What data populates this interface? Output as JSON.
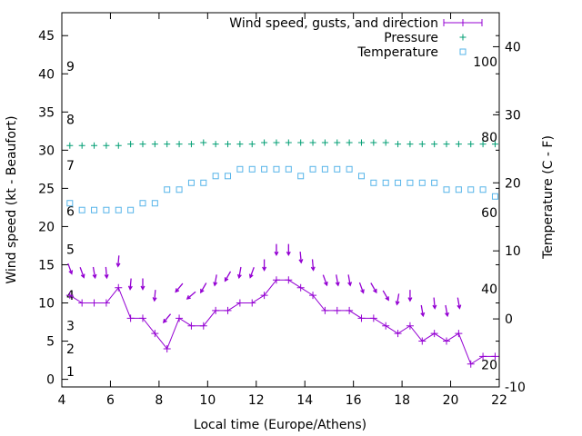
{
  "chart_data": {
    "type": "line",
    "title": "",
    "xlabel": "Local time (Europe/Athens)",
    "ylabel": "Wind speed (kt - Beaufort)",
    "y2label": "Temperature (C - F)",
    "xlim": [
      4,
      22
    ],
    "ylim": [
      -1,
      48
    ],
    "y2lim": [
      -10,
      45
    ],
    "x_ticks": [
      4,
      6,
      8,
      10,
      12,
      14,
      16,
      18,
      20,
      22
    ],
    "y_ticks": [
      0,
      5,
      10,
      15,
      20,
      25,
      30,
      35,
      40,
      45
    ],
    "y2_ticks": [
      -10,
      0,
      10,
      20,
      30,
      40
    ],
    "beaufort_labels": [
      {
        "label": "1",
        "kt": 1
      },
      {
        "label": "2",
        "kt": 4
      },
      {
        "label": "3",
        "kt": 7
      },
      {
        "label": "4",
        "kt": 11
      },
      {
        "label": "5",
        "kt": 17
      },
      {
        "label": "6",
        "kt": 22
      },
      {
        "label": "7",
        "kt": 28
      },
      {
        "label": "8",
        "kt": 34
      },
      {
        "label": "9",
        "kt": 41
      }
    ],
    "fahrenheit_labels": [
      {
        "label": "20",
        "celsius": -6.7
      },
      {
        "label": "40",
        "celsius": 4.4
      },
      {
        "label": "60",
        "celsius": 15.6
      },
      {
        "label": "80",
        "celsius": 26.7
      },
      {
        "label": "100",
        "celsius": 37.8
      }
    ],
    "legend_position": "top-right",
    "grid": false,
    "colors": {
      "wind": "#9400d3",
      "pressure": "#009e73",
      "temperature": "#56b4e9"
    },
    "series": [
      {
        "name": "Wind speed, gusts, and direction",
        "style": "line-points",
        "x": [
          4.33,
          4.83,
          5.33,
          5.83,
          6.33,
          6.83,
          7.33,
          7.83,
          8.33,
          8.83,
          9.33,
          9.83,
          10.33,
          10.83,
          11.33,
          11.83,
          12.33,
          12.83,
          13.33,
          13.83,
          14.33,
          14.83,
          15.33,
          15.83,
          16.33,
          16.83,
          17.33,
          17.83,
          18.33,
          18.83,
          19.33,
          19.83,
          20.33,
          20.83,
          21.33,
          21.83
        ],
        "values": [
          11,
          10,
          10,
          10,
          12,
          8,
          8,
          6,
          4,
          8,
          7,
          7,
          9,
          9,
          10,
          10,
          11,
          13,
          13,
          12,
          11,
          9,
          9,
          9,
          8,
          8,
          7,
          6,
          7,
          5,
          6,
          5,
          6,
          2,
          3,
          3
        ]
      },
      {
        "name": "Pressure",
        "style": "points-plus",
        "x": [
          4.33,
          4.83,
          5.33,
          5.83,
          6.33,
          6.83,
          7.33,
          7.83,
          8.33,
          8.83,
          9.33,
          9.83,
          10.33,
          10.83,
          11.33,
          11.83,
          12.33,
          12.83,
          13.33,
          13.83,
          14.33,
          14.83,
          15.33,
          15.83,
          16.33,
          16.83,
          17.33,
          17.83,
          18.33,
          18.83,
          19.33,
          19.83,
          20.33,
          20.83,
          21.33,
          21.83
        ],
        "values": [
          30.6,
          30.6,
          30.6,
          30.6,
          30.6,
          30.8,
          30.8,
          30.8,
          30.8,
          30.8,
          30.8,
          31.0,
          30.8,
          30.8,
          30.8,
          30.8,
          31.0,
          31.0,
          31.0,
          31.0,
          31.0,
          31.0,
          31.0,
          31.0,
          31.0,
          31.0,
          31.0,
          30.8,
          30.8,
          30.8,
          30.8,
          30.8,
          30.8,
          30.8,
          30.8,
          30.8
        ]
      },
      {
        "name": "Temperature",
        "style": "points-square",
        "axis": "y2",
        "x": [
          4.33,
          4.83,
          5.33,
          5.83,
          6.33,
          6.83,
          7.33,
          7.83,
          8.33,
          8.83,
          9.33,
          9.83,
          10.33,
          10.83,
          11.33,
          11.83,
          12.33,
          12.83,
          13.33,
          13.83,
          14.33,
          14.83,
          15.33,
          15.83,
          16.33,
          16.83,
          17.33,
          17.83,
          18.33,
          18.83,
          19.33,
          19.83,
          20.33,
          20.83,
          21.33,
          21.83
        ],
        "values": [
          17,
          16,
          16,
          16,
          16,
          16,
          17,
          17,
          19,
          19,
          20,
          20,
          21,
          21,
          22,
          22,
          22,
          22,
          22,
          21,
          22,
          22,
          22,
          22,
          21,
          20,
          20,
          20,
          20,
          20,
          20,
          19,
          19,
          19,
          19,
          18
        ]
      }
    ],
    "gusts": {
      "x": [
        4.33,
        4.83,
        5.33,
        5.83,
        6.33,
        6.83,
        7.33,
        7.83,
        8.33,
        8.83,
        9.33,
        9.83,
        10.33,
        10.83,
        11.33,
        11.83,
        12.33,
        12.83,
        13.33,
        13.83,
        14.33,
        14.83,
        15.33,
        15.83,
        16.33,
        16.83,
        17.33,
        17.83,
        18.33,
        18.83,
        19.33,
        19.83,
        20.33
      ],
      "values": [
        14.5,
        14,
        14,
        14,
        15.5,
        12.5,
        12.5,
        11,
        8,
        12,
        11,
        12,
        13,
        13.5,
        14,
        14,
        15,
        17,
        17,
        16,
        15,
        13,
        13,
        13,
        12,
        12,
        11,
        10.5,
        11,
        9,
        10,
        9,
        10
      ],
      "direction_deg": [
        340,
        340,
        350,
        355,
        5,
        5,
        0,
        5,
        40,
        40,
        50,
        30,
        10,
        30,
        10,
        20,
        0,
        0,
        0,
        355,
        355,
        340,
        350,
        350,
        340,
        330,
        330,
        10,
        0,
        350,
        355,
        350,
        350
      ]
    }
  }
}
